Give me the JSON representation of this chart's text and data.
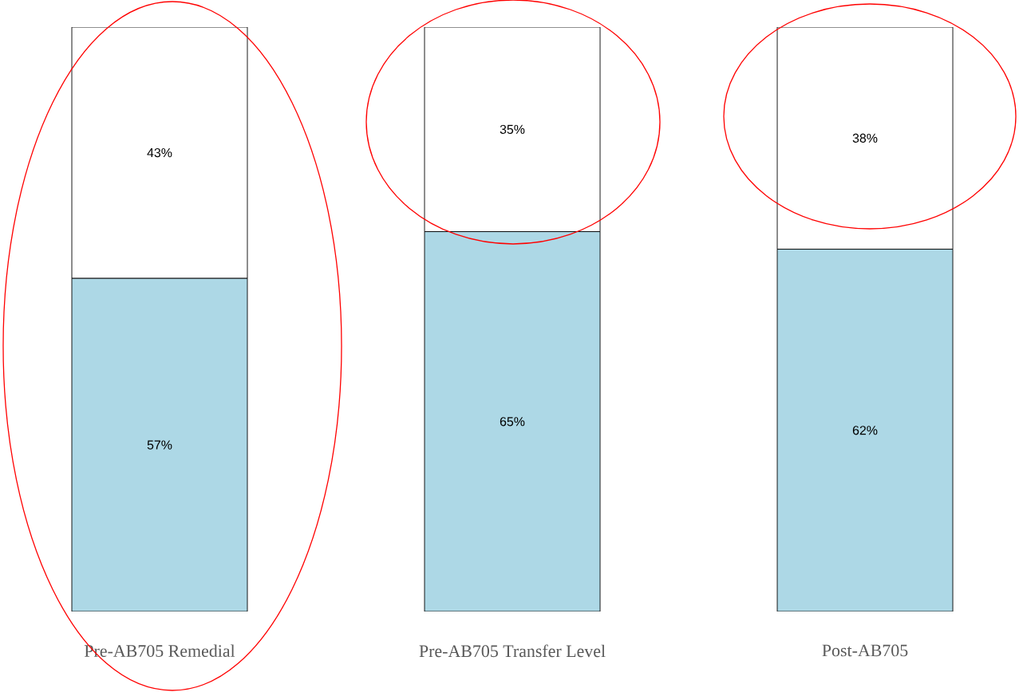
{
  "chart_data": {
    "type": "bar",
    "stacked": true,
    "categories": [
      "Pre-AB705 Remedial",
      "Pre-AB705 Transfer Level",
      "Post-AB705"
    ],
    "series": [
      {
        "color": "#add8e6",
        "values": [
          57,
          65,
          62
        ],
        "value_labels": [
          "57%",
          "65%",
          "62%"
        ]
      },
      {
        "color": "#ffffff",
        "values": [
          43,
          35,
          38
        ],
        "value_labels": [
          "43%",
          "35%",
          "38%"
        ]
      }
    ]
  }
}
